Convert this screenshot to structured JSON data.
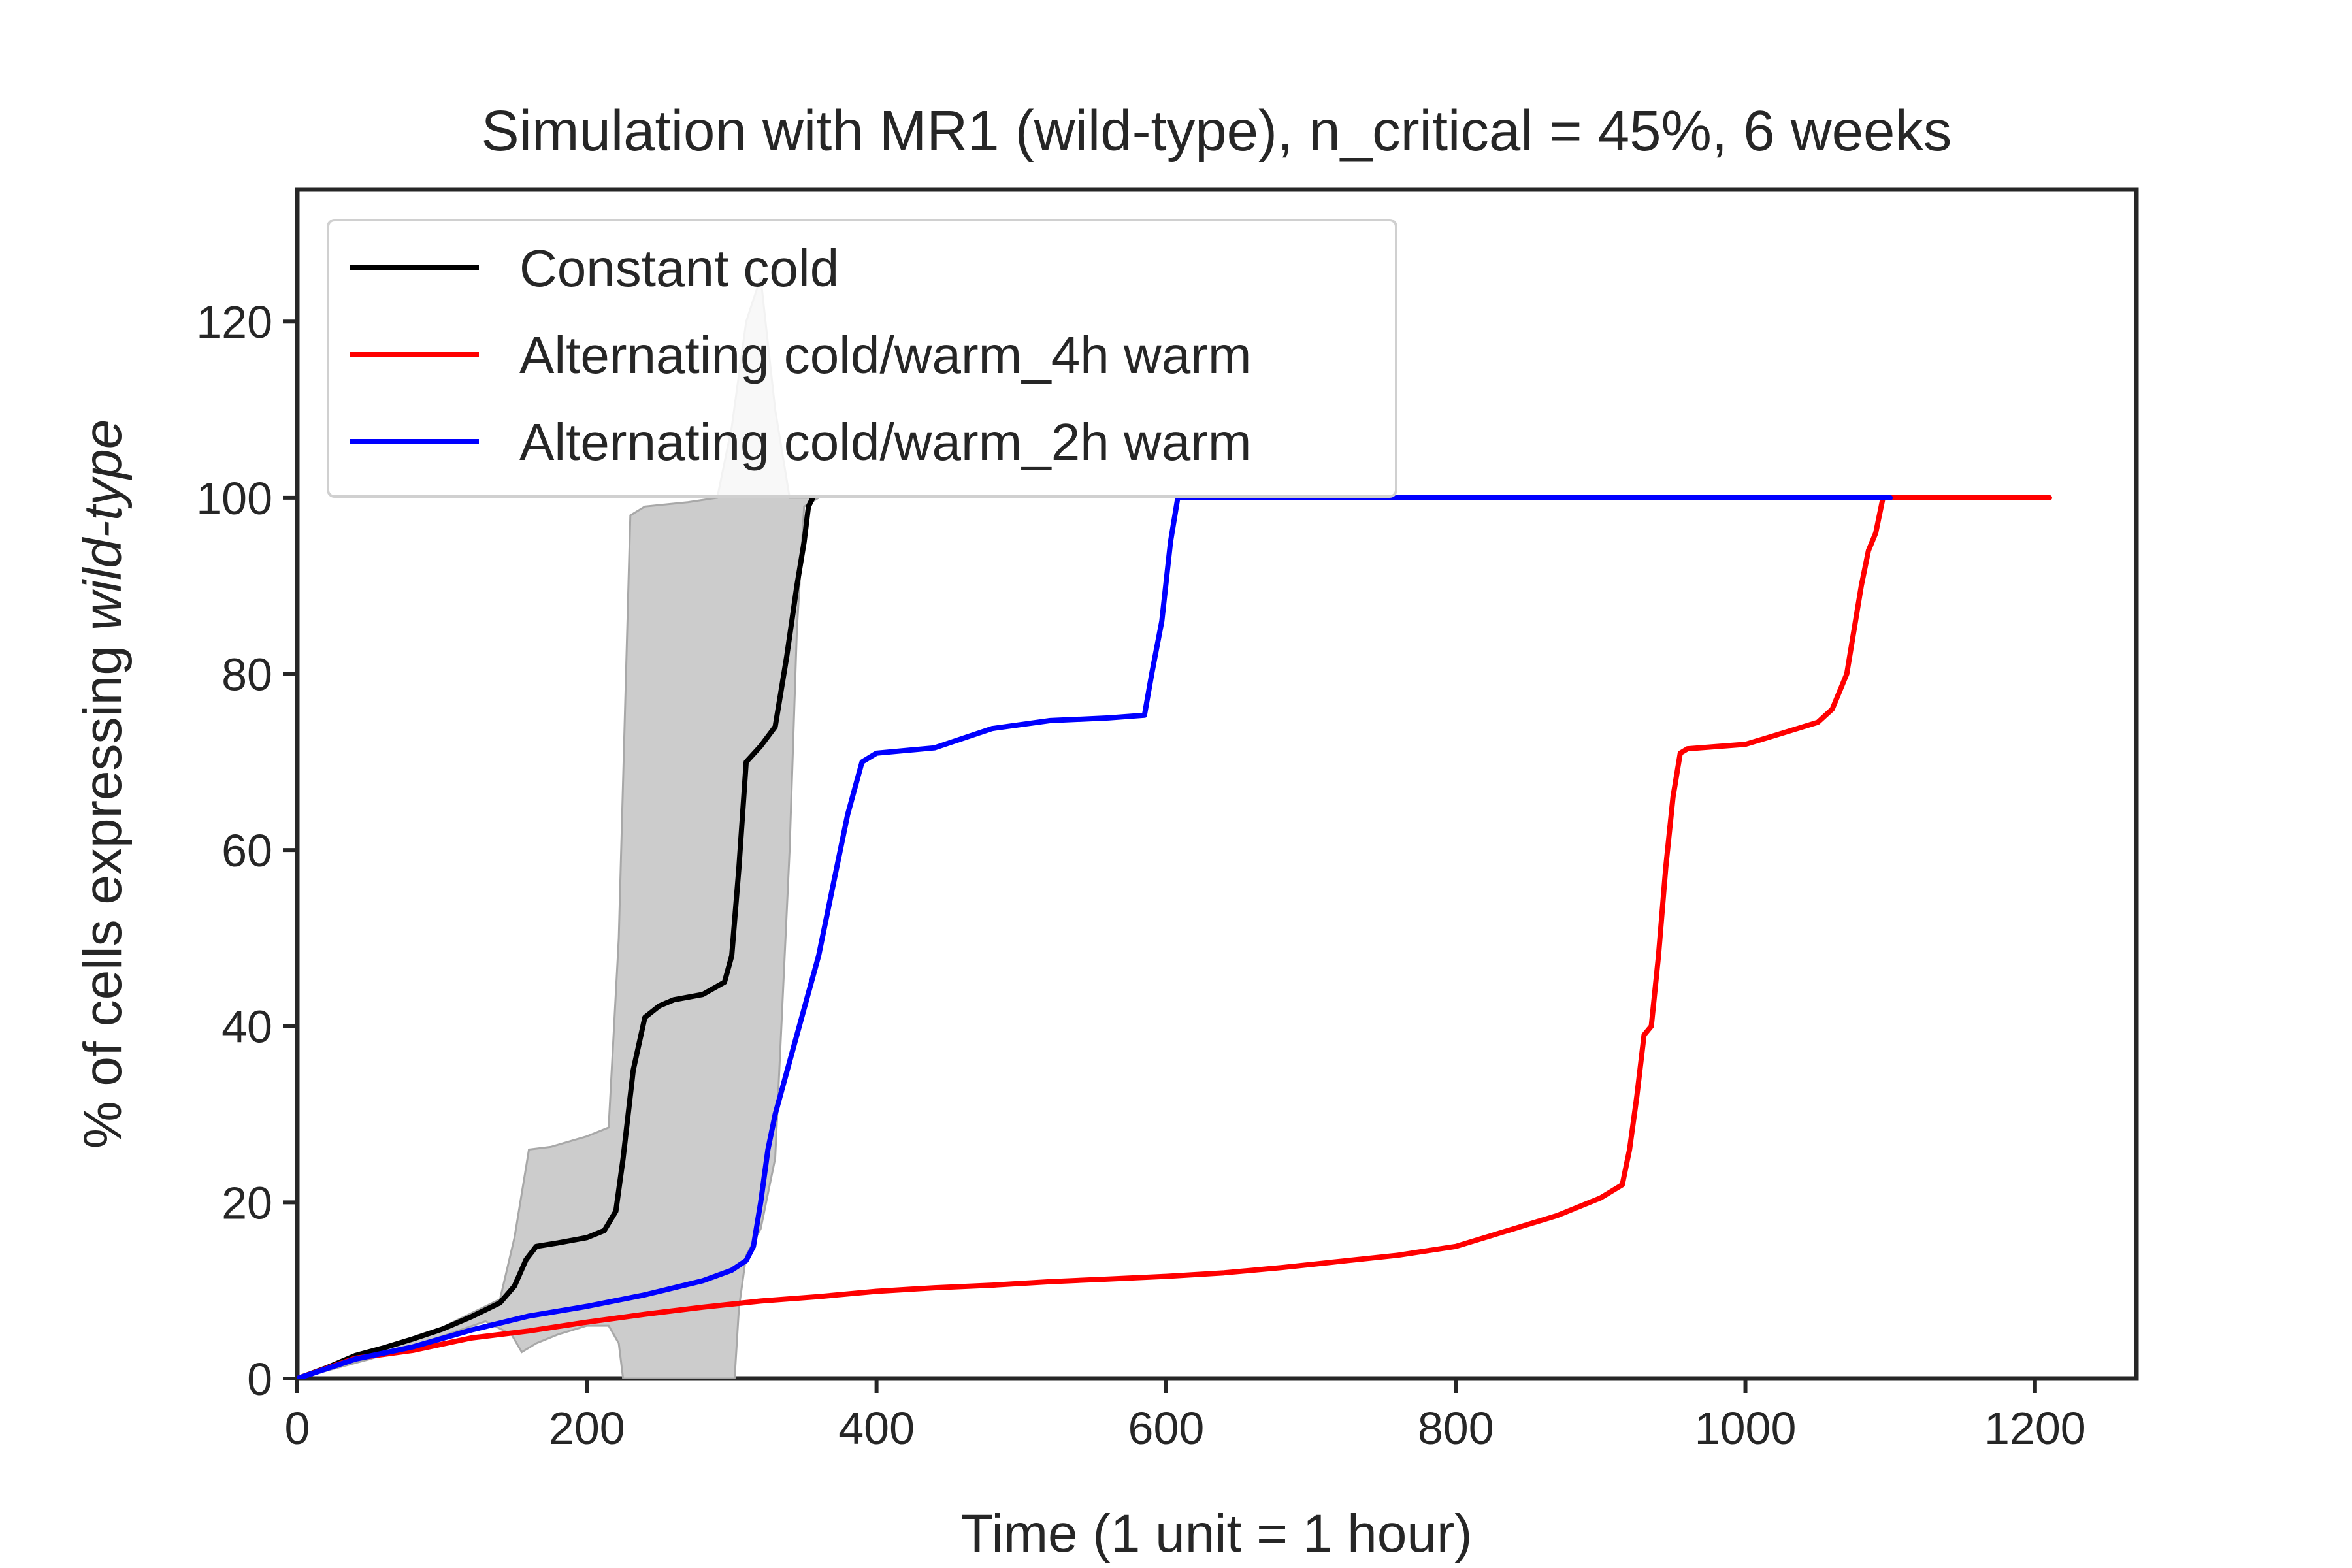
{
  "chart_data": {
    "type": "line",
    "title": "Simulation with MR1 (wild-type), n_critical = 45%, 6 weeks",
    "xlabel": "Time (1 unit = 1 hour)",
    "ylabel_prefix": "% of cells expressing ",
    "ylabel_italic": "wild-type",
    "xlim": [
      0,
      1270
    ],
    "ylim": [
      0,
      135
    ],
    "xticks": [
      0,
      200,
      400,
      600,
      800,
      1000,
      1200
    ],
    "yticks": [
      0,
      20,
      40,
      60,
      80,
      100,
      120
    ],
    "grid": false,
    "legend_position": "top-left",
    "series": [
      {
        "name": "Constant cold",
        "color": "#000000",
        "points": [
          [
            0,
            0
          ],
          [
            20,
            1.2
          ],
          [
            40,
            2.6
          ],
          [
            60,
            3.5
          ],
          [
            80,
            4.5
          ],
          [
            100,
            5.6
          ],
          [
            120,
            7
          ],
          [
            140,
            8.6
          ],
          [
            150,
            10.5
          ],
          [
            158,
            13.5
          ],
          [
            165,
            15
          ],
          [
            180,
            15.4
          ],
          [
            200,
            16
          ],
          [
            212,
            16.8
          ],
          [
            220,
            19
          ],
          [
            225,
            25
          ],
          [
            232,
            35
          ],
          [
            240,
            41
          ],
          [
            250,
            42.3
          ],
          [
            260,
            43
          ],
          [
            280,
            43.6
          ],
          [
            295,
            45
          ],
          [
            300,
            48
          ],
          [
            305,
            58
          ],
          [
            310,
            70
          ],
          [
            320,
            71.8
          ],
          [
            330,
            74
          ],
          [
            338,
            82
          ],
          [
            345,
            90
          ],
          [
            350,
            95
          ],
          [
            353,
            99
          ],
          [
            356,
            100
          ]
        ]
      },
      {
        "name": "Alternating cold/warm_4h warm",
        "color": "#ff0000",
        "points": [
          [
            0,
            0
          ],
          [
            40,
            2.3
          ],
          [
            80,
            3.2
          ],
          [
            120,
            4.6
          ],
          [
            160,
            5.4
          ],
          [
            200,
            6.4
          ],
          [
            240,
            7.3
          ],
          [
            280,
            8.1
          ],
          [
            320,
            8.8
          ],
          [
            360,
            9.3
          ],
          [
            400,
            9.9
          ],
          [
            440,
            10.3
          ],
          [
            480,
            10.6
          ],
          [
            520,
            11
          ],
          [
            560,
            11.3
          ],
          [
            600,
            11.6
          ],
          [
            640,
            12
          ],
          [
            680,
            12.6
          ],
          [
            720,
            13.3
          ],
          [
            760,
            14
          ],
          [
            800,
            15
          ],
          [
            840,
            17
          ],
          [
            870,
            18.5
          ],
          [
            900,
            20.5
          ],
          [
            915,
            22
          ],
          [
            920,
            26
          ],
          [
            925,
            32
          ],
          [
            930,
            39
          ],
          [
            935,
            40
          ],
          [
            940,
            48
          ],
          [
            945,
            58
          ],
          [
            950,
            66
          ],
          [
            955,
            71
          ],
          [
            960,
            71.5
          ],
          [
            1000,
            72
          ],
          [
            1020,
            73
          ],
          [
            1050,
            74.5
          ],
          [
            1060,
            76
          ],
          [
            1070,
            80
          ],
          [
            1080,
            90
          ],
          [
            1085,
            94
          ],
          [
            1090,
            96
          ],
          [
            1095,
            100
          ],
          [
            1210,
            100
          ]
        ]
      },
      {
        "name": "Alternating cold/warm_2h warm",
        "color": "#0000ff",
        "points": [
          [
            0,
            0
          ],
          [
            40,
            2.2
          ],
          [
            80,
            3.6
          ],
          [
            120,
            5.5
          ],
          [
            160,
            7.1
          ],
          [
            200,
            8.2
          ],
          [
            240,
            9.5
          ],
          [
            280,
            11.1
          ],
          [
            300,
            12.3
          ],
          [
            310,
            13.4
          ],
          [
            315,
            15
          ],
          [
            320,
            20
          ],
          [
            325,
            26
          ],
          [
            330,
            30
          ],
          [
            340,
            36
          ],
          [
            350,
            42
          ],
          [
            360,
            48
          ],
          [
            370,
            56
          ],
          [
            380,
            64
          ],
          [
            390,
            70
          ],
          [
            400,
            71
          ],
          [
            440,
            71.6
          ],
          [
            480,
            73.8
          ],
          [
            520,
            74.7
          ],
          [
            560,
            75
          ],
          [
            585,
            75.3
          ],
          [
            590,
            80
          ],
          [
            597,
            86
          ],
          [
            603,
            95
          ],
          [
            608,
            100
          ],
          [
            1100,
            100
          ]
        ]
      }
    ]
  }
}
